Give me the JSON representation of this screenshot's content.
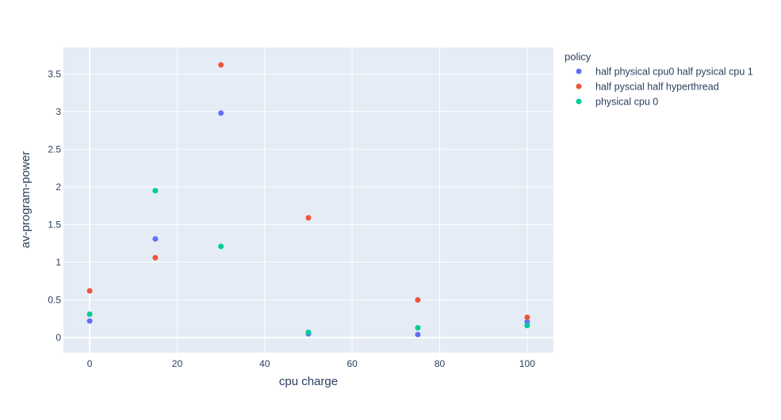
{
  "chart_data": {
    "type": "scatter",
    "xlabel": "cpu charge",
    "ylabel": "av-program-power",
    "xlim": [
      -6,
      106
    ],
    "ylim": [
      -0.2,
      3.85
    ],
    "x_ticks": [
      0,
      20,
      40,
      60,
      80,
      100
    ],
    "y_ticks": [
      0,
      0.5,
      1,
      1.5,
      2,
      2.5,
      3,
      3.5
    ],
    "grid": true,
    "legend": {
      "title": "policy",
      "placement": "right"
    },
    "series": [
      {
        "name": "half physical cpu0 half pysical cpu 1",
        "color": "#636efa",
        "x": [
          0,
          15,
          30,
          50,
          75,
          100
        ],
        "y": [
          0.22,
          1.31,
          2.98,
          0.05,
          0.04,
          0.21
        ]
      },
      {
        "name": "half pyscial half hyperthread",
        "color": "#ef553b",
        "x": [
          0,
          15,
          30,
          50,
          75,
          100
        ],
        "y": [
          0.62,
          1.06,
          3.62,
          1.59,
          0.5,
          0.27
        ]
      },
      {
        "name": "physical cpu 0",
        "color": "#00cc96",
        "x": [
          0,
          15,
          30,
          50,
          75,
          100
        ],
        "y": [
          0.31,
          1.95,
          1.21,
          0.07,
          0.13,
          0.16
        ]
      }
    ]
  }
}
